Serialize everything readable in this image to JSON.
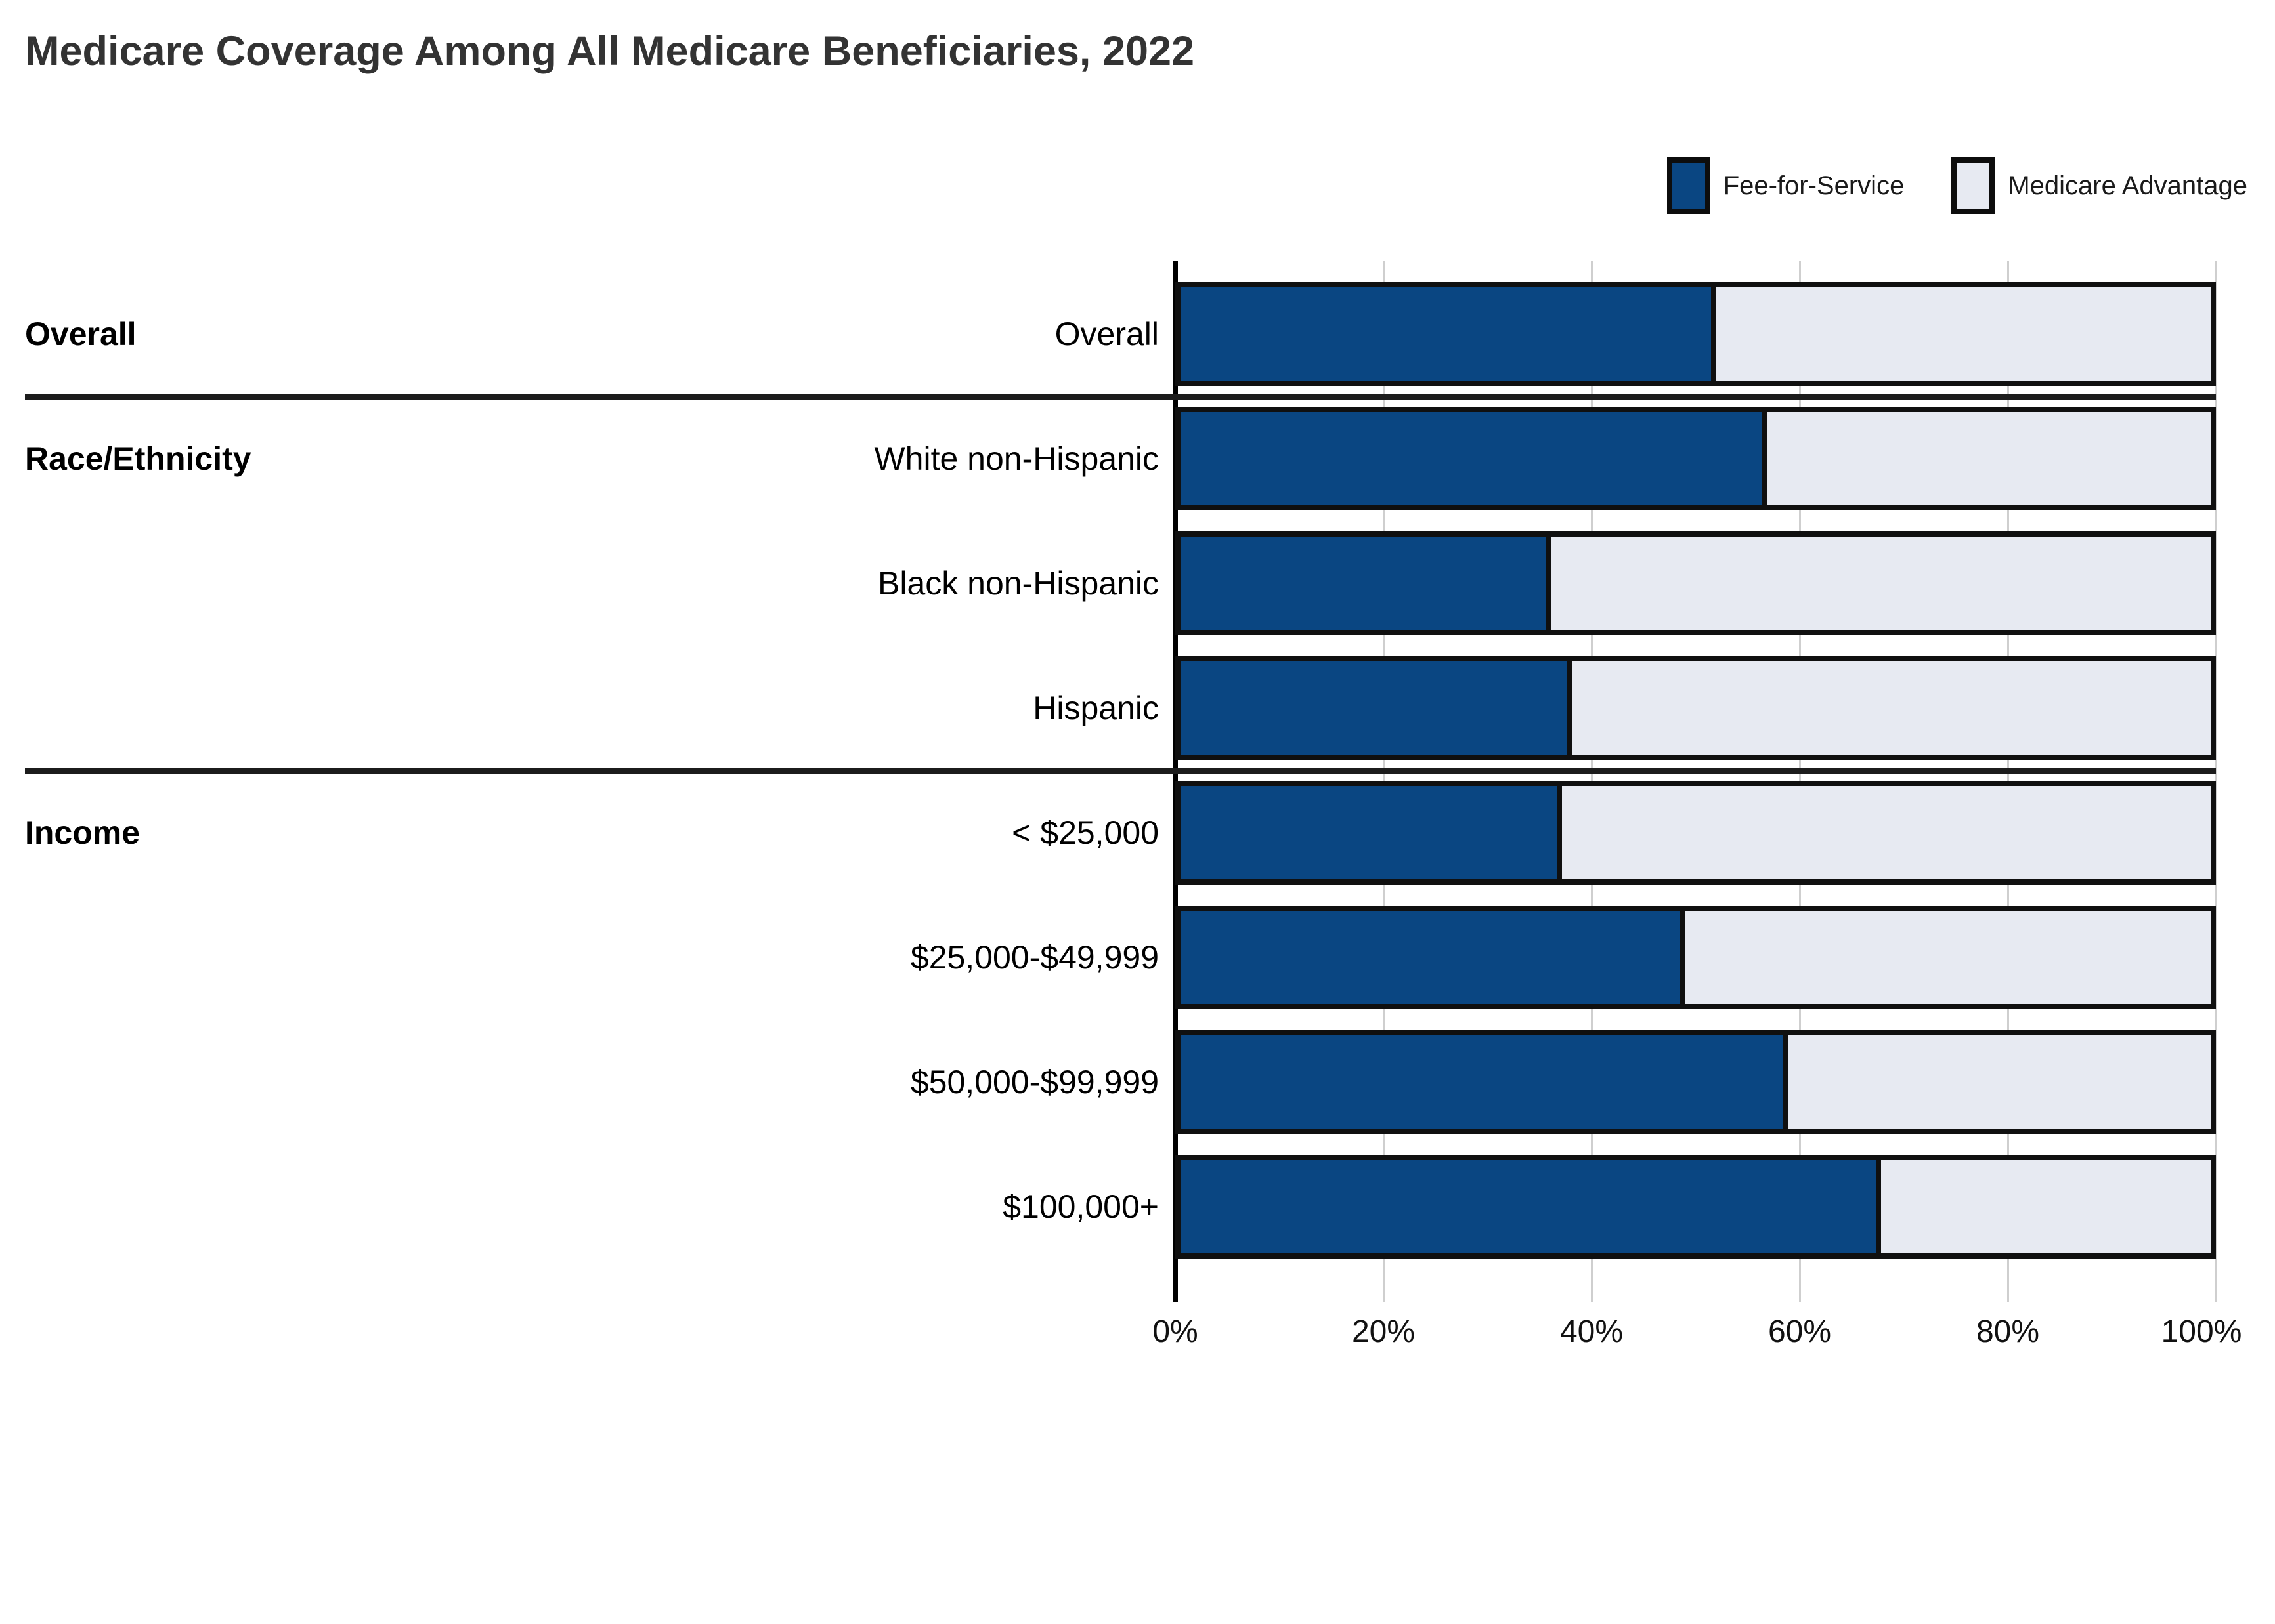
{
  "title": "Medicare Coverage Among All Medicare Beneficiaries, 2022",
  "legend": {
    "items": [
      {
        "label": "Fee-for-Service",
        "color": "#0a4682"
      },
      {
        "label": "Medicare Advantage",
        "color": "#e7eaf2"
      }
    ]
  },
  "colors": {
    "fee_for_service": "#0a4682",
    "medicare_advantage": "#e7eaf2",
    "bar_border": "#101010",
    "gridline": "#cfcfcf",
    "axis_line": "#000000",
    "divider": "#1c1c1c",
    "title_text": "#333333"
  },
  "chart_data": {
    "type": "bar",
    "subtype": "horizontal-stacked-100percent",
    "title": "Medicare Coverage Among All Medicare Beneficiaries, 2022",
    "legend_position": "top-right",
    "grid": true,
    "xlabel": "",
    "ylabel": "",
    "x_axis": {
      "range": [
        0,
        100
      ],
      "tick_values": [
        0,
        20,
        40,
        60,
        80,
        100
      ],
      "tick_labels": [
        "0%",
        "20%",
        "40%",
        "60%",
        "80%",
        "100%"
      ]
    },
    "sections": [
      {
        "label": "Overall",
        "row_indexes": [
          0
        ]
      },
      {
        "label": "Race/Ethnicity",
        "row_indexes": [
          1,
          2,
          3
        ]
      },
      {
        "label": "Income",
        "row_indexes": [
          4,
          5,
          6,
          7
        ]
      }
    ],
    "categories": [
      "Overall",
      "White non-Hispanic",
      "Black non-Hispanic",
      "Hispanic",
      "< $25,000",
      "$25,000-$49,999",
      "$50,000-$99,999",
      "$100,000+"
    ],
    "series": [
      {
        "name": "Fee-for-Service",
        "color": "#0a4682",
        "values": [
          52,
          57,
          36,
          38,
          37,
          49,
          59,
          68
        ]
      },
      {
        "name": "Medicare Advantage",
        "color": "#e7eaf2",
        "values": [
          48,
          43,
          64,
          62,
          63,
          51,
          41,
          32
        ]
      }
    ]
  }
}
